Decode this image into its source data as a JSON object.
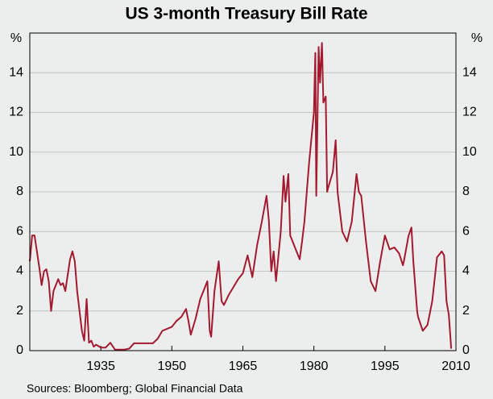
{
  "chart_data": {
    "type": "line",
    "title": "US 3-month Treasury Bill Rate",
    "y_unit": "%",
    "source": "Sources: Bloomberg; Global Financial Data",
    "xlim": [
      1920,
      2010
    ],
    "xticks": [
      1935,
      1950,
      1965,
      1980,
      1995,
      2010
    ],
    "ylim": [
      0,
      16
    ],
    "yticks": [
      0,
      2,
      4,
      6,
      8,
      10,
      12,
      14
    ],
    "grid": true,
    "series": [
      {
        "color": "#a3192e",
        "x": [
          1920,
          1920.5,
          1921,
          1921.5,
          1922,
          1922.5,
          1923,
          1923.5,
          1924,
          1924.5,
          1925,
          1925.5,
          1926,
          1926.5,
          1927,
          1927.5,
          1928,
          1928.5,
          1929,
          1929.5,
          1930,
          1930.5,
          1931,
          1931.5,
          1932,
          1932.5,
          1933,
          1933.5,
          1934,
          1935,
          1936,
          1937,
          1938,
          1939,
          1940,
          1941,
          1942,
          1946,
          1947,
          1948,
          1949,
          1950,
          1951,
          1952,
          1953,
          1953.5,
          1954,
          1955,
          1956,
          1957,
          1957.5,
          1958,
          1958.3,
          1959,
          1959.9,
          1960.5,
          1961,
          1962,
          1963,
          1964,
          1965,
          1966,
          1967,
          1968,
          1969,
          1970,
          1970.5,
          1971,
          1971.5,
          1972,
          1973,
          1973.6,
          1974,
          1974.6,
          1975,
          1976,
          1977,
          1977.5,
          1978,
          1978.8,
          1979,
          1980,
          1980.3,
          1980.5,
          1981,
          1981.3,
          1981.7,
          1982,
          1982.5,
          1982.8,
          1983,
          1984,
          1984.6,
          1985,
          1986,
          1987,
          1988,
          1989,
          1989.5,
          1990,
          1991,
          1992,
          1993,
          1994,
          1995,
          1996,
          1997,
          1998,
          1998.8,
          1999,
          2000,
          2000.6,
          2001,
          2001.8,
          2002,
          2003,
          2004,
          2005,
          2006,
          2007,
          2007.5,
          2008,
          2008.5,
          2009
        ],
        "values": [
          4.5,
          5.8,
          5.8,
          5.0,
          4.2,
          3.3,
          4.0,
          4.1,
          3.5,
          2.0,
          3.0,
          3.3,
          3.6,
          3.3,
          3.4,
          3.0,
          3.8,
          4.6,
          5.0,
          4.5,
          3.0,
          2.0,
          1.0,
          0.5,
          2.6,
          0.4,
          0.5,
          0.2,
          0.3,
          0.15,
          0.15,
          0.4,
          0.05,
          0.05,
          0.05,
          0.1,
          0.37,
          0.37,
          0.6,
          1.0,
          1.1,
          1.2,
          1.5,
          1.7,
          2.1,
          1.5,
          0.8,
          1.6,
          2.6,
          3.2,
          3.5,
          1.0,
          0.7,
          3.0,
          4.5,
          2.5,
          2.3,
          2.8,
          3.2,
          3.6,
          3.9,
          4.8,
          3.7,
          5.3,
          6.5,
          7.8,
          6.5,
          4.0,
          5.0,
          3.5,
          6.0,
          8.8,
          7.5,
          8.9,
          5.8,
          5.2,
          4.6,
          5.5,
          6.5,
          8.9,
          9.5,
          12.0,
          15.0,
          7.8,
          15.3,
          13.5,
          15.5,
          12.5,
          12.8,
          8.0,
          8.2,
          9.0,
          10.6,
          8.0,
          6.0,
          5.5,
          6.5,
          8.9,
          8.0,
          7.8,
          5.5,
          3.5,
          3.0,
          4.5,
          5.8,
          5.1,
          5.2,
          4.9,
          4.3,
          4.5,
          5.8,
          6.2,
          4.5,
          2.0,
          1.7,
          1.0,
          1.3,
          2.5,
          4.7,
          5.0,
          4.8,
          2.5,
          1.8,
          0.1
        ]
      }
    ]
  }
}
